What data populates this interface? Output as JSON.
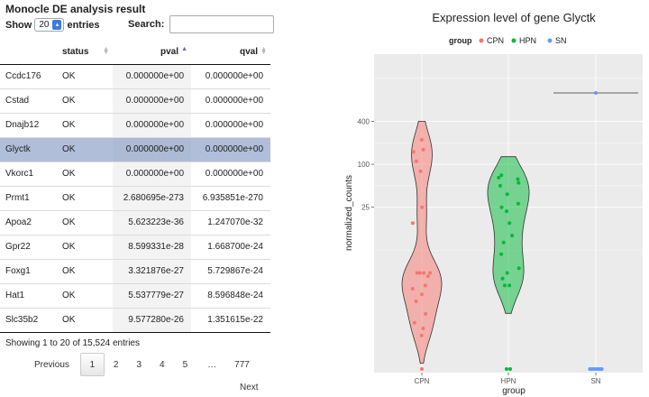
{
  "table": {
    "title": "Monocle DE analysis result",
    "length": {
      "show_label": "Show",
      "value": "20",
      "entries_label": "entries"
    },
    "search": {
      "label": "Search:",
      "value": "",
      "placeholder": ""
    },
    "columns": [
      "",
      "status",
      "pval",
      "qval"
    ],
    "sorted_column": "pval",
    "rows": [
      [
        "Ccdc176",
        "OK",
        "0.000000e+00",
        "0.000000e+00"
      ],
      [
        "Cstad",
        "OK",
        "0.000000e+00",
        "0.000000e+00"
      ],
      [
        "Dnajb12",
        "OK",
        "0.000000e+00",
        "0.000000e+00"
      ],
      [
        "Glyctk",
        "OK",
        "0.000000e+00",
        "0.000000e+00"
      ],
      [
        "Vkorc1",
        "OK",
        "0.000000e+00",
        "0.000000e+00"
      ],
      [
        "Prmt1",
        "OK",
        "2.680695e-273",
        "6.935851e-270"
      ],
      [
        "Apoa2",
        "OK",
        "5.623223e-36",
        "1.247070e-32"
      ],
      [
        "Gpr22",
        "OK",
        "8.599331e-28",
        "1.668700e-24"
      ],
      [
        "Foxg1",
        "OK",
        "3.321876e-27",
        "5.729867e-24"
      ],
      [
        "Hat1",
        "OK",
        "5.537779e-27",
        "8.596848e-24"
      ],
      [
        "Slc35b2",
        "OK",
        "9.577280e-26",
        "1.351615e-22"
      ]
    ],
    "selected_row": 3,
    "info": "Showing 1 to 20 of 15,524 entries",
    "pagination": {
      "previous": "Previous",
      "pages": [
        "1",
        "2",
        "3",
        "4",
        "5",
        "…",
        "777"
      ],
      "current": "1",
      "next": "Next"
    }
  },
  "chart_data": {
    "type": "violin",
    "title": "Expression level of gene Glyctk",
    "xlabel": "group",
    "ylabel": "normalized_counts",
    "y_scale": "log",
    "y_ticks": [
      25,
      100,
      400
    ],
    "categories": [
      "CPN",
      "HPN",
      "SN"
    ],
    "legend": {
      "title": "group",
      "position": "top",
      "entries": [
        "CPN",
        "HPN",
        "SN"
      ]
    },
    "colors": {
      "CPN": "#f8766d",
      "HPN": "#00ba38",
      "SN": "#619cff",
      "panel": "#ebebeb",
      "grid": "#ffffff"
    },
    "series": [
      {
        "name": "CPN",
        "points": [
          220,
          160,
          150,
          110,
          80,
          25,
          15,
          3,
          3,
          3,
          3,
          2.7,
          2,
          1.8,
          1.5,
          1.2,
          0.8,
          0.6,
          0.5,
          0.4
        ],
        "zeros": 1
      },
      {
        "name": "HPN",
        "points": [
          70,
          65,
          62,
          55,
          50,
          38,
          28,
          25,
          22,
          15,
          10,
          8,
          5.5,
          3.5,
          3,
          2.5,
          2,
          2
        ],
        "zeros": 2
      },
      {
        "name": "SN",
        "points": [
          1000
        ],
        "zeros": 7
      }
    ]
  }
}
